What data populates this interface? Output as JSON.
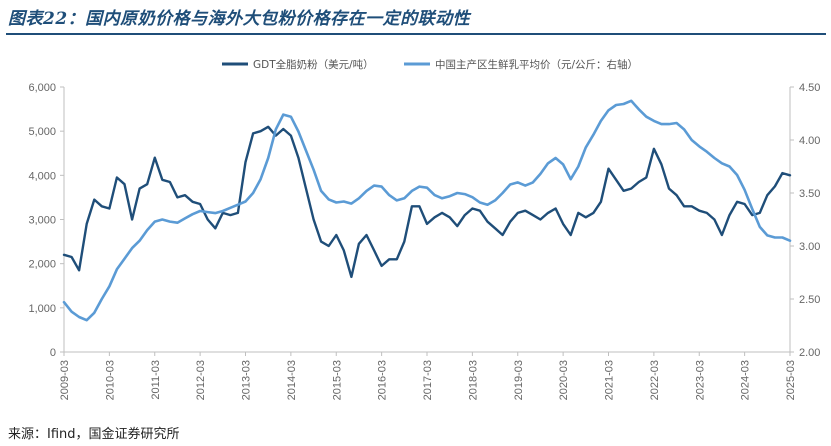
{
  "title": "图表22：国内原奶价格与海外大包粉价格存在一定的联动性",
  "source": "来源：Ifind，国金证券研究所",
  "chart_data": {
    "type": "line",
    "legend_position": "top-center",
    "grid": false,
    "y_left": {
      "min": 0,
      "max": 6000,
      "ticks": [
        0,
        1000,
        2000,
        3000,
        4000,
        5000,
        6000
      ],
      "tick_labels": [
        "0",
        "1,000",
        "2,000",
        "3,000",
        "4,000",
        "5,000",
        "6,000"
      ]
    },
    "y_right": {
      "min": 2.0,
      "max": 4.5,
      "ticks": [
        2.0,
        2.5,
        3.0,
        3.5,
        4.0,
        4.5
      ],
      "tick_labels": [
        "2.00",
        "2.50",
        "3.00",
        "3.50",
        "4.00",
        "4.50"
      ]
    },
    "x_range": [
      "2009-03",
      "2025-03"
    ],
    "x_tick_labels": [
      "2009-03",
      "2010-03",
      "2011-03",
      "2012-03",
      "2013-03",
      "2014-03",
      "2015-03",
      "2016-03",
      "2017-03",
      "2018-03",
      "2019-03",
      "2020-03",
      "2021-03",
      "2022-03",
      "2023-03",
      "2024-03",
      "2025-03"
    ],
    "series": [
      {
        "name": "GDT全脂奶粉（美元/吨）",
        "axis": "left",
        "color": "#1f4e79",
        "points": [
          [
            "2009-03",
            2200
          ],
          [
            "2009-05",
            2150
          ],
          [
            "2009-07",
            1850
          ],
          [
            "2009-09",
            2900
          ],
          [
            "2009-11",
            3450
          ],
          [
            "2010-01",
            3300
          ],
          [
            "2010-03",
            3250
          ],
          [
            "2010-05",
            3950
          ],
          [
            "2010-07",
            3800
          ],
          [
            "2010-09",
            3000
          ],
          [
            "2010-11",
            3700
          ],
          [
            "2011-01",
            3800
          ],
          [
            "2011-03",
            4400
          ],
          [
            "2011-05",
            3900
          ],
          [
            "2011-07",
            3850
          ],
          [
            "2011-09",
            3500
          ],
          [
            "2011-11",
            3550
          ],
          [
            "2012-01",
            3400
          ],
          [
            "2012-03",
            3350
          ],
          [
            "2012-05",
            3000
          ],
          [
            "2012-07",
            2800
          ],
          [
            "2012-09",
            3150
          ],
          [
            "2012-11",
            3100
          ],
          [
            "2013-01",
            3150
          ],
          [
            "2013-03",
            4300
          ],
          [
            "2013-05",
            4950
          ],
          [
            "2013-07",
            5000
          ],
          [
            "2013-09",
            5100
          ],
          [
            "2013-11",
            4900
          ],
          [
            "2014-01",
            5050
          ],
          [
            "2014-03",
            4900
          ],
          [
            "2014-05",
            4400
          ],
          [
            "2014-07",
            3700
          ],
          [
            "2014-09",
            3000
          ],
          [
            "2014-11",
            2500
          ],
          [
            "2015-01",
            2400
          ],
          [
            "2015-03",
            2650
          ],
          [
            "2015-05",
            2300
          ],
          [
            "2015-07",
            1700
          ],
          [
            "2015-09",
            2450
          ],
          [
            "2015-11",
            2650
          ],
          [
            "2016-01",
            2300
          ],
          [
            "2016-03",
            1950
          ],
          [
            "2016-05",
            2100
          ],
          [
            "2016-07",
            2100
          ],
          [
            "2016-09",
            2500
          ],
          [
            "2016-11",
            3300
          ],
          [
            "2017-01",
            3300
          ],
          [
            "2017-03",
            2900
          ],
          [
            "2017-05",
            3050
          ],
          [
            "2017-07",
            3150
          ],
          [
            "2017-09",
            3050
          ],
          [
            "2017-11",
            2850
          ],
          [
            "2018-01",
            3100
          ],
          [
            "2018-03",
            3250
          ],
          [
            "2018-05",
            3200
          ],
          [
            "2018-07",
            2950
          ],
          [
            "2018-09",
            2800
          ],
          [
            "2018-11",
            2650
          ],
          [
            "2019-01",
            2950
          ],
          [
            "2019-03",
            3150
          ],
          [
            "2019-05",
            3200
          ],
          [
            "2019-07",
            3100
          ],
          [
            "2019-09",
            3000
          ],
          [
            "2019-11",
            3150
          ],
          [
            "2020-01",
            3250
          ],
          [
            "2020-03",
            2900
          ],
          [
            "2020-05",
            2650
          ],
          [
            "2020-07",
            3150
          ],
          [
            "2020-09",
            3050
          ],
          [
            "2020-11",
            3150
          ],
          [
            "2021-01",
            3400
          ],
          [
            "2021-03",
            4150
          ],
          [
            "2021-05",
            3900
          ],
          [
            "2021-07",
            3650
          ],
          [
            "2021-09",
            3700
          ],
          [
            "2021-11",
            3850
          ],
          [
            "2022-01",
            3950
          ],
          [
            "2022-03",
            4600
          ],
          [
            "2022-05",
            4250
          ],
          [
            "2022-07",
            3700
          ],
          [
            "2022-09",
            3550
          ],
          [
            "2022-11",
            3300
          ],
          [
            "2023-01",
            3300
          ],
          [
            "2023-03",
            3200
          ],
          [
            "2023-05",
            3150
          ],
          [
            "2023-07",
            3000
          ],
          [
            "2023-09",
            2650
          ],
          [
            "2023-11",
            3100
          ],
          [
            "2024-01",
            3400
          ],
          [
            "2024-03",
            3350
          ],
          [
            "2024-05",
            3100
          ],
          [
            "2024-07",
            3150
          ],
          [
            "2024-09",
            3550
          ],
          [
            "2024-11",
            3750
          ],
          [
            "2025-01",
            4050
          ],
          [
            "2025-03",
            4000
          ]
        ]
      },
      {
        "name": "中国主产区生鲜乳平均价（元/公斤：右轴）",
        "axis": "right",
        "color": "#5b9bd5",
        "points": [
          [
            "2009-03",
            2.47
          ],
          [
            "2009-05",
            2.38
          ],
          [
            "2009-07",
            2.33
          ],
          [
            "2009-09",
            2.3
          ],
          [
            "2009-11",
            2.37
          ],
          [
            "2010-01",
            2.5
          ],
          [
            "2010-03",
            2.62
          ],
          [
            "2010-05",
            2.78
          ],
          [
            "2010-07",
            2.88
          ],
          [
            "2010-09",
            2.98
          ],
          [
            "2010-11",
            3.05
          ],
          [
            "2011-01",
            3.15
          ],
          [
            "2011-03",
            3.23
          ],
          [
            "2011-05",
            3.25
          ],
          [
            "2011-07",
            3.23
          ],
          [
            "2011-09",
            3.22
          ],
          [
            "2011-11",
            3.26
          ],
          [
            "2012-01",
            3.3
          ],
          [
            "2012-03",
            3.33
          ],
          [
            "2012-05",
            3.32
          ],
          [
            "2012-07",
            3.31
          ],
          [
            "2012-09",
            3.33
          ],
          [
            "2012-11",
            3.36
          ],
          [
            "2013-01",
            3.39
          ],
          [
            "2013-03",
            3.42
          ],
          [
            "2013-05",
            3.5
          ],
          [
            "2013-07",
            3.63
          ],
          [
            "2013-09",
            3.83
          ],
          [
            "2013-11",
            4.1
          ],
          [
            "2014-01",
            4.24
          ],
          [
            "2014-03",
            4.22
          ],
          [
            "2014-05",
            4.08
          ],
          [
            "2014-07",
            3.9
          ],
          [
            "2014-09",
            3.72
          ],
          [
            "2014-11",
            3.52
          ],
          [
            "2015-01",
            3.44
          ],
          [
            "2015-03",
            3.41
          ],
          [
            "2015-05",
            3.42
          ],
          [
            "2015-07",
            3.4
          ],
          [
            "2015-09",
            3.45
          ],
          [
            "2015-11",
            3.52
          ],
          [
            "2016-01",
            3.57
          ],
          [
            "2016-03",
            3.56
          ],
          [
            "2016-05",
            3.48
          ],
          [
            "2016-07",
            3.43
          ],
          [
            "2016-09",
            3.45
          ],
          [
            "2016-11",
            3.52
          ],
          [
            "2017-01",
            3.56
          ],
          [
            "2017-03",
            3.55
          ],
          [
            "2017-05",
            3.48
          ],
          [
            "2017-07",
            3.45
          ],
          [
            "2017-09",
            3.47
          ],
          [
            "2017-11",
            3.5
          ],
          [
            "2018-01",
            3.49
          ],
          [
            "2018-03",
            3.46
          ],
          [
            "2018-05",
            3.41
          ],
          [
            "2018-07",
            3.39
          ],
          [
            "2018-09",
            3.43
          ],
          [
            "2018-11",
            3.5
          ],
          [
            "2019-01",
            3.58
          ],
          [
            "2019-03",
            3.6
          ],
          [
            "2019-05",
            3.57
          ],
          [
            "2019-07",
            3.6
          ],
          [
            "2019-09",
            3.68
          ],
          [
            "2019-11",
            3.78
          ],
          [
            "2020-01",
            3.83
          ],
          [
            "2020-03",
            3.77
          ],
          [
            "2020-05",
            3.63
          ],
          [
            "2020-07",
            3.75
          ],
          [
            "2020-09",
            3.93
          ],
          [
            "2020-11",
            4.05
          ],
          [
            "2021-01",
            4.18
          ],
          [
            "2021-03",
            4.28
          ],
          [
            "2021-05",
            4.33
          ],
          [
            "2021-07",
            4.34
          ],
          [
            "2021-09",
            4.37
          ],
          [
            "2021-11",
            4.29
          ],
          [
            "2022-01",
            4.22
          ],
          [
            "2022-03",
            4.18
          ],
          [
            "2022-05",
            4.15
          ],
          [
            "2022-07",
            4.15
          ],
          [
            "2022-09",
            4.16
          ],
          [
            "2022-11",
            4.1
          ],
          [
            "2023-01",
            4.0
          ],
          [
            "2023-03",
            3.94
          ],
          [
            "2023-05",
            3.89
          ],
          [
            "2023-07",
            3.83
          ],
          [
            "2023-09",
            3.78
          ],
          [
            "2023-11",
            3.75
          ],
          [
            "2024-01",
            3.67
          ],
          [
            "2024-03",
            3.53
          ],
          [
            "2024-05",
            3.35
          ],
          [
            "2024-07",
            3.18
          ],
          [
            "2024-09",
            3.1
          ],
          [
            "2024-11",
            3.08
          ],
          [
            "2025-01",
            3.08
          ],
          [
            "2025-03",
            3.05
          ]
        ]
      }
    ]
  }
}
